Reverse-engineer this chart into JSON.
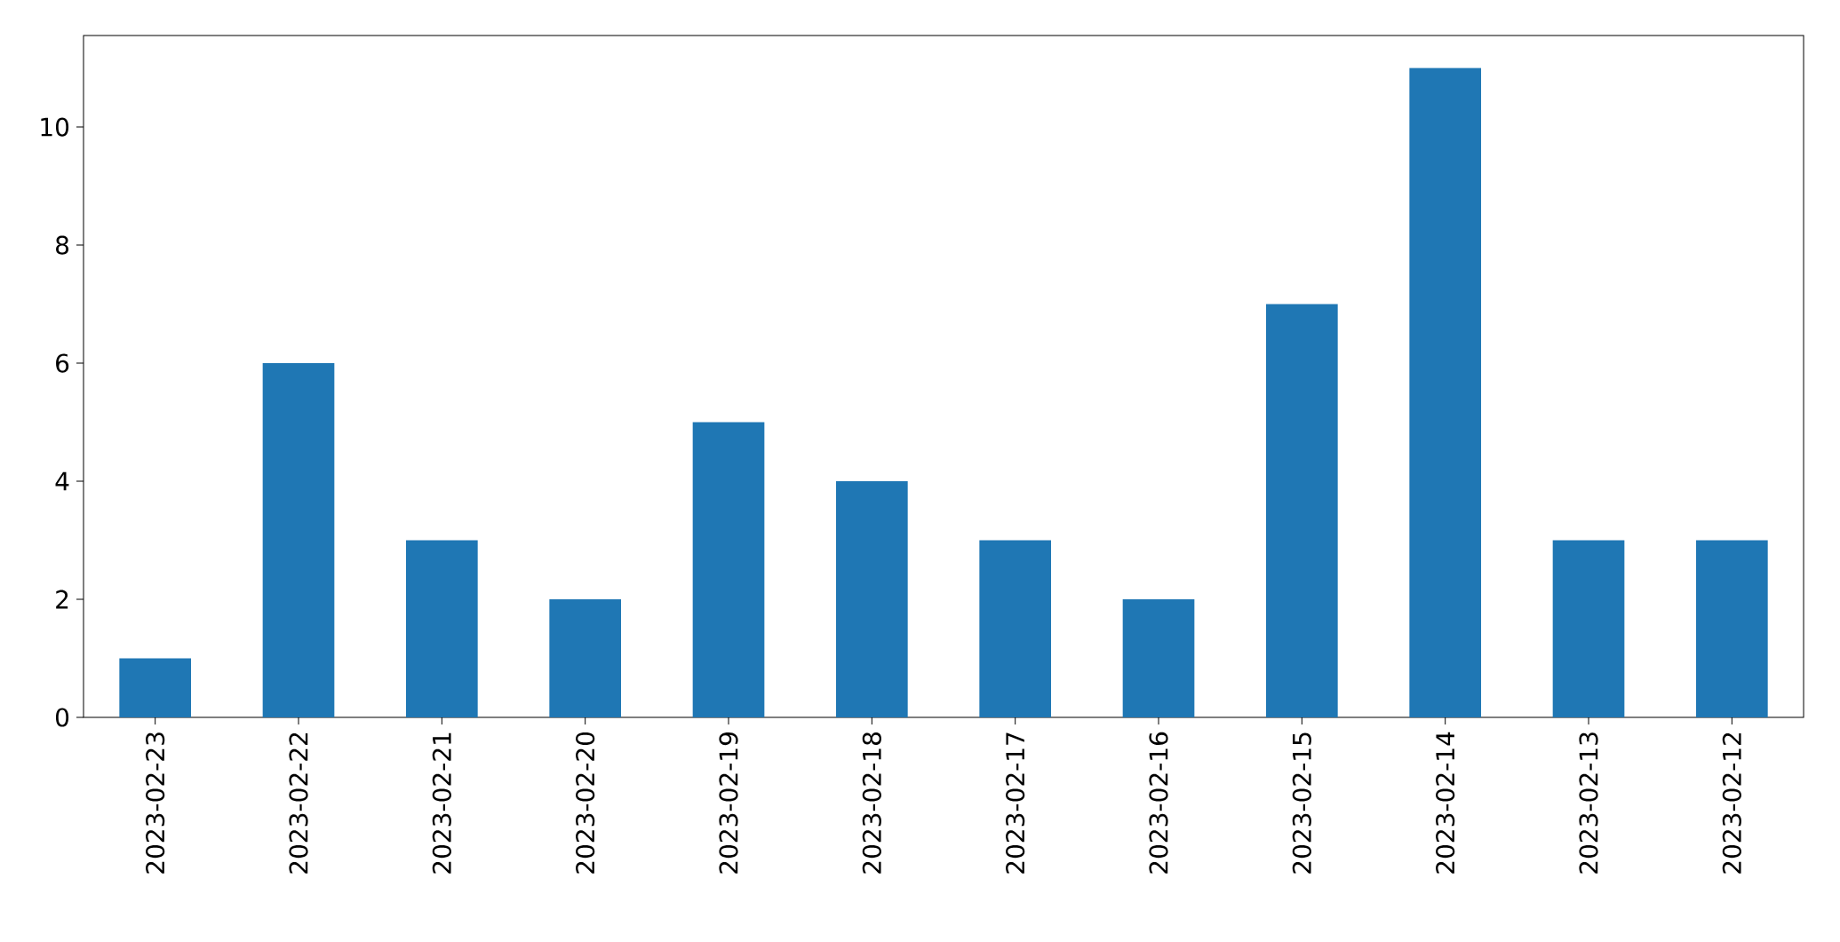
{
  "chart_data": {
    "type": "bar",
    "categories": [
      "2023-02-23",
      "2023-02-22",
      "2023-02-21",
      "2023-02-20",
      "2023-02-19",
      "2023-02-18",
      "2023-02-17",
      "2023-02-16",
      "2023-02-15",
      "2023-02-14",
      "2023-02-13",
      "2023-02-12"
    ],
    "values": [
      1,
      6,
      3,
      2,
      5,
      4,
      3,
      2,
      7,
      11,
      3,
      3
    ],
    "color": "#1f77b4",
    "ylim": [
      0,
      11.55
    ],
    "yticks": [
      0,
      2,
      4,
      6,
      8,
      10
    ]
  }
}
